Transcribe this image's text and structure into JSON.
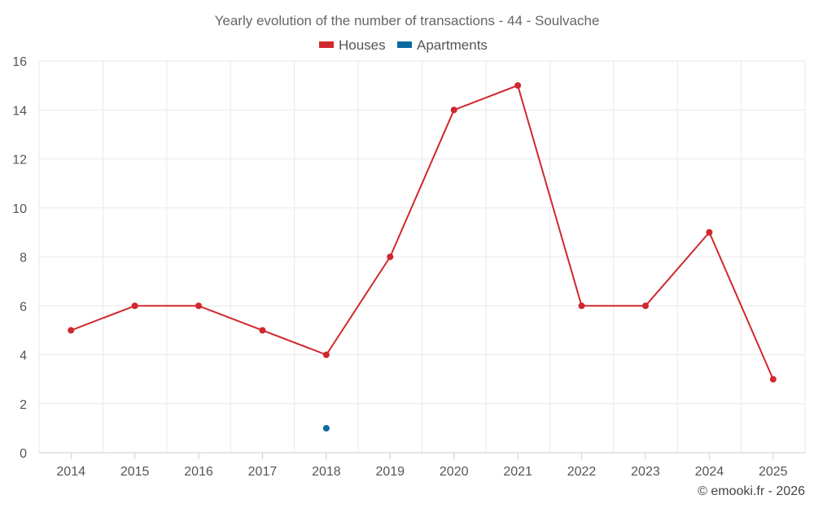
{
  "chart_data": {
    "type": "line",
    "title": "Yearly evolution of the number of transactions - 44 - Soulvache",
    "categories": [
      "2014",
      "2015",
      "2016",
      "2017",
      "2018",
      "2019",
      "2020",
      "2021",
      "2022",
      "2023",
      "2024",
      "2025"
    ],
    "series": [
      {
        "name": "Houses",
        "color": "#d0282e",
        "values": [
          5,
          6,
          6,
          5,
          4,
          8,
          14,
          15,
          6,
          6,
          9,
          3
        ]
      },
      {
        "name": "Apartments",
        "color": "#0b6aa2",
        "values": [
          null,
          null,
          null,
          null,
          1,
          null,
          null,
          null,
          null,
          null,
          null,
          null
        ]
      }
    ],
    "ylim": [
      0,
      16
    ],
    "yticks": [
      0,
      2,
      4,
      6,
      8,
      10,
      12,
      14,
      16
    ],
    "grid": true,
    "legend": "top-center",
    "credit": "© emooki.fr - 2026"
  }
}
